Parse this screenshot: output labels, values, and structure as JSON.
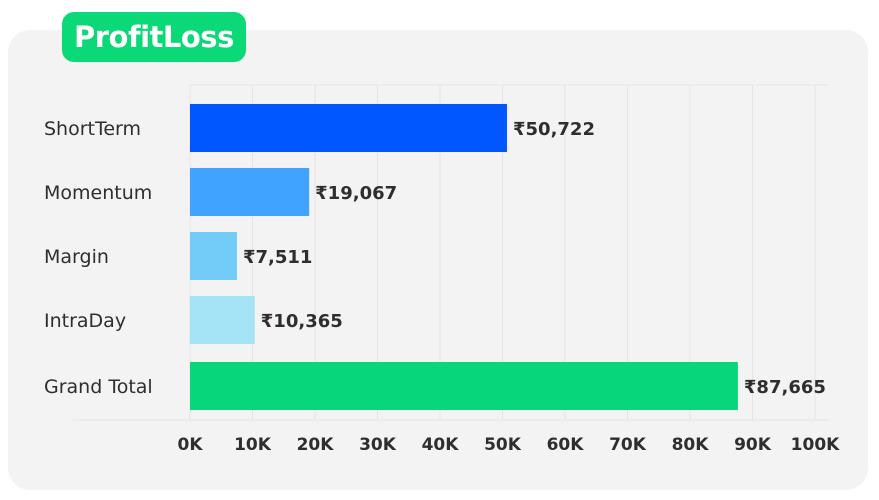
{
  "title": "ProfitLoss",
  "chart_data": {
    "type": "bar",
    "orientation": "horizontal",
    "title": "ProfitLoss",
    "xlabel": "",
    "ylabel": "",
    "categories": [
      "ShortTerm",
      "Momentum",
      "Margin",
      "IntraDay",
      "Grand Total"
    ],
    "values": [
      50722,
      19067,
      7511,
      10365,
      87665
    ],
    "value_labels": [
      "₹50,722",
      "₹19,067",
      "₹7,511",
      "₹10,365",
      "₹87,665"
    ],
    "colors": [
      "#0057ff",
      "#3fa3ff",
      "#72ccf7",
      "#a5e3f6",
      "#07d67a"
    ],
    "xlim": [
      0,
      100000
    ],
    "ticks": [
      0,
      10000,
      20000,
      30000,
      40000,
      50000,
      60000,
      70000,
      80000,
      90000,
      100000
    ],
    "tick_labels": [
      "0K",
      "10K",
      "20K",
      "30K",
      "40K",
      "50K",
      "60K",
      "70K",
      "80K",
      "90K",
      "100K"
    ],
    "grid": true,
    "legend": "none"
  },
  "colors": {
    "title_badge": "#0bd876",
    "card_background": "#f3f3f3",
    "grid": "#e4e4e4",
    "text": "#2e2e2e"
  }
}
